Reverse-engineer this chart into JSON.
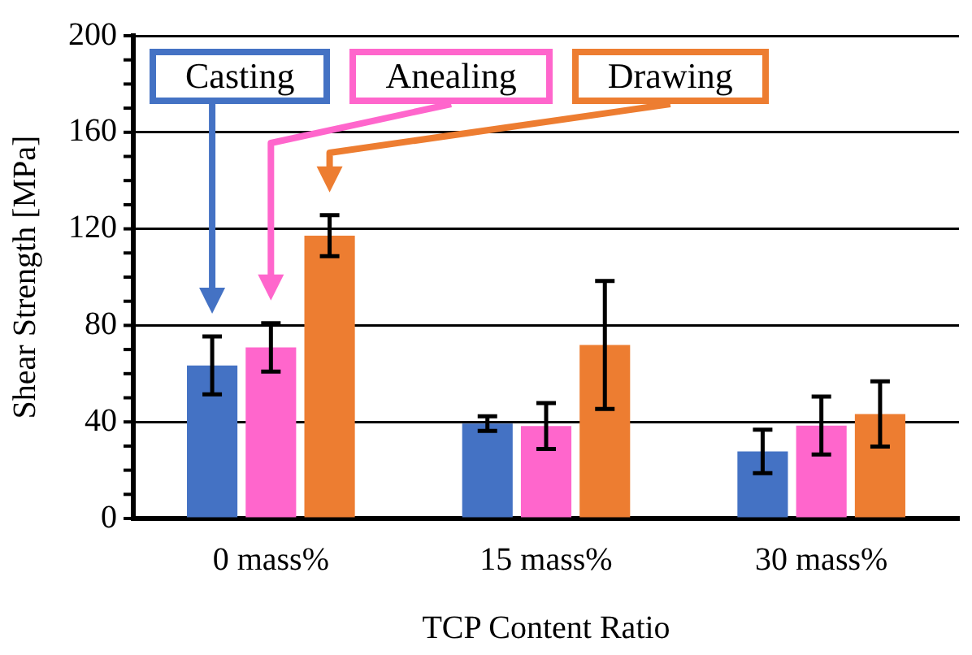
{
  "chart_data": {
    "type": "bar",
    "xlabel": "TCP Content Ratio",
    "ylabel": "Shear Strength [MPa]",
    "categories": [
      "0 mass%",
      "15 mass%",
      "30 mass%"
    ],
    "series": [
      {
        "name": "Casting",
        "color": "#4472c4",
        "values": [
          63.4,
          39.3,
          27.8
        ],
        "errors": [
          12,
          3,
          9
        ]
      },
      {
        "name": "Anealing",
        "color": "#ff66cc",
        "values": [
          70.9,
          38.3,
          38.5
        ],
        "errors": [
          10,
          9.5,
          12
        ]
      },
      {
        "name": "Drawing",
        "color": "#ed7d31",
        "values": [
          117.2,
          71.9,
          43.3
        ],
        "errors": [
          8.5,
          26.5,
          13.5
        ]
      }
    ],
    "ylim": [
      0,
      200
    ],
    "yticks": [
      0,
      {
        "value": 10,
        "label": null
      },
      {
        "value": 20,
        "label": null
      },
      {
        "value": 30,
        "label": null
      },
      40,
      {
        "value": 50,
        "label": null
      },
      {
        "value": 60,
        "label": null
      },
      {
        "value": 70,
        "label": null
      },
      80,
      {
        "value": 90,
        "label": null
      },
      {
        "value": 100,
        "label": null
      },
      {
        "value": 110,
        "label": null
      },
      120,
      {
        "value": 130,
        "label": null
      },
      {
        "value": 140,
        "label": null
      },
      {
        "value": 150,
        "label": null
      },
      160,
      {
        "value": 170,
        "label": null
      },
      {
        "value": 180,
        "label": null
      },
      {
        "value": 190,
        "label": null
      },
      200
    ],
    "grid": "y",
    "legend": "top"
  }
}
